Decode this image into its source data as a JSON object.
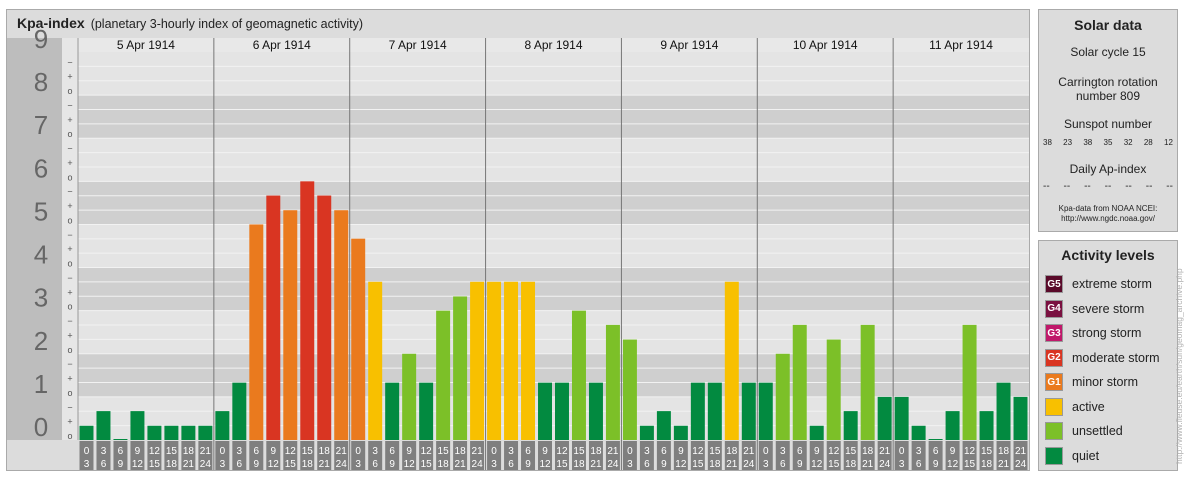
{
  "title": "Kpa-index",
  "subtitle": "(planetary 3-hourly index of geomagnetic activity)",
  "chart_data": {
    "type": "bar",
    "title": "Kpa-index",
    "subtitle": "(planetary 3-hourly index of geomagnetic activity)",
    "ylim": [
      0,
      9
    ],
    "y_major_ticks": [
      "0",
      "1",
      "2",
      "3",
      "4",
      "5",
      "6",
      "7",
      "8",
      "9"
    ],
    "y_minor_ticks": [
      "o",
      "+",
      "−"
    ],
    "grid": true,
    "days": [
      "5 Apr 1914",
      "6 Apr 1914",
      "7 Apr 1914",
      "8 Apr 1914",
      "9 Apr 1914",
      "10 Apr 1914",
      "11 Apr 1914"
    ],
    "interval_start_labels": [
      "0",
      "3",
      "6",
      "9",
      "12",
      "15",
      "18",
      "21"
    ],
    "interval_end_labels": [
      "3",
      "6",
      "9",
      "12",
      "15",
      "18",
      "21",
      "24"
    ],
    "values": [
      0.33,
      0.67,
      0,
      0.67,
      0.33,
      0.33,
      0.33,
      0.33,
      0.67,
      1.33,
      5,
      5.67,
      5.33,
      6,
      5.67,
      5.33,
      4.67,
      3.67,
      1.33,
      2,
      1.33,
      3,
      3.33,
      3.67,
      3.67,
      3.67,
      3.67,
      1.33,
      1.33,
      3,
      1.33,
      2.67,
      2.33,
      0.33,
      0.67,
      0.33,
      1.33,
      1.33,
      3.67,
      1.33,
      1.33,
      2,
      2.67,
      0.33,
      2.33,
      0.67,
      2.67,
      1,
      1,
      0.33,
      0,
      0.67,
      2.67,
      0.67,
      1.33,
      1
    ],
    "colors": {
      "extreme_storm": "#5a0a2a",
      "severe_storm": "#7a1040",
      "strong_storm": "#c0186a",
      "moderate_storm": "#d93522",
      "minor_storm": "#ea7a1e",
      "active": "#f8c000",
      "unsettled": "#7cc028",
      "quiet": "#028a40"
    }
  },
  "solar": {
    "title": "Solar data",
    "cycle": "Solar cycle 15",
    "carrington_1": "Carrington rotation",
    "carrington_2": "number 809",
    "sunspot_label": "Sunspot number",
    "sunspot_values": [
      "38",
      "23",
      "38",
      "35",
      "32",
      "28",
      "12"
    ],
    "ap_label": "Daily Ap-index",
    "ap_values": [
      "--",
      "--",
      "--",
      "--",
      "--",
      "--",
      "--"
    ],
    "source_1": "Kpa-data from NOAA NCEI:",
    "source_2": "http://www.ngdc.noaa.gov/"
  },
  "activity": {
    "title": "Activity levels",
    "items": [
      {
        "code": "G5",
        "label": "extreme storm",
        "color": "#5a0a2a"
      },
      {
        "code": "G4",
        "label": "severe storm",
        "color": "#7a1040"
      },
      {
        "code": "G3",
        "label": "strong storm",
        "color": "#c0186a"
      },
      {
        "code": "G2",
        "label": "moderate storm",
        "color": "#d93522"
      },
      {
        "code": "G1",
        "label": "minor storm",
        "color": "#ea7a1e"
      },
      {
        "code": "",
        "label": "active",
        "color": "#f8c000"
      },
      {
        "code": "",
        "label": "unsettled",
        "color": "#7cc028"
      },
      {
        "code": "",
        "label": "quiet",
        "color": "#028a40"
      }
    ]
  },
  "watermark": "http://www.fleuse.eu/earth/sun/geomag_archive.php"
}
